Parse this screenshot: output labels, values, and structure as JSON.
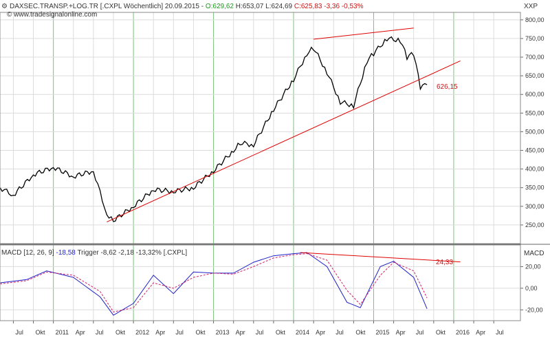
{
  "header": {
    "instrument": "DAXSEC.TRANSP.+LOG.TR [.CXPL  Wöchentlich] 20.09.2015 - ",
    "open": "O:629,62",
    "high": "H:653,07",
    "low": "L:624,69",
    "close": "C:625,83 -3,36 -0,53%",
    "watermark": "© www.tradesignalonline.com"
  },
  "price_panel": {
    "axis_label": "XXP",
    "annotation": "626,15"
  },
  "macd_panel": {
    "legend_prefix": "MACD [12, 26, 9] ",
    "legend_macd": "-18,58",
    "legend_trigger": " Trigger -8,62",
    "legend_hist": " -2,18 -13,32% [.CXPL]",
    "axis_label": "MACD",
    "annotation": "24,33"
  },
  "colors": {
    "price_line": "#000000",
    "trend_line": "#e00000",
    "macd_line": "#2020c8",
    "trigger_line": "#d0206a",
    "grid": "#dcdcdc",
    "vline": "#7bc27b"
  },
  "chart_data": [
    {
      "type": "line",
      "title": "DAXSEC.TRANSP.+LOG.TR",
      "ylabel": "XXP",
      "ylim": [
        200,
        820
      ],
      "yticks": [
        "250,00",
        "300,00",
        "350,00",
        "400,00",
        "450,00",
        "500,00",
        "550,00",
        "600,00",
        "650,00",
        "700,00",
        "750,00",
        "800,00"
      ],
      "xticks": [
        "Jul",
        "Okt",
        "2011",
        "Apr",
        "Jul",
        "Okt",
        "2012",
        "Apr",
        "Jul",
        "Okt",
        "2013",
        "Apr",
        "Jul",
        "Okt",
        "2014",
        "Apr",
        "Jul",
        "Okt",
        "2015",
        "Apr",
        "Jul",
        "Okt",
        "2016",
        "Apr",
        "Jul"
      ],
      "x": [
        "2010-05",
        "2010-07",
        "2010-10",
        "2011-01",
        "2011-04",
        "2011-07",
        "2011-09",
        "2011-10",
        "2012-01",
        "2012-04",
        "2012-07",
        "2012-10",
        "2013-01",
        "2013-04",
        "2013-05",
        "2013-07",
        "2013-10",
        "2014-01",
        "2014-03",
        "2014-04",
        "2014-06",
        "2014-08",
        "2014-10",
        "2014-12",
        "2015-01",
        "2015-03",
        "2015-05",
        "2015-06",
        "2015-07",
        "2015-08",
        "2015-09"
      ],
      "values": [
        350,
        330,
        385,
        405,
        380,
        395,
        280,
        262,
        300,
        345,
        340,
        350,
        395,
        450,
        470,
        465,
        560,
        640,
        710,
        725,
        660,
        580,
        570,
        690,
        710,
        750,
        745,
        700,
        710,
        620,
        626
      ],
      "trend_lines": [
        {
          "from": [
            "2011-09",
            258
          ],
          "to": [
            "2016-02",
            690
          ]
        },
        {
          "from": [
            "2014-04",
            748
          ],
          "to": [
            "2015-07",
            778
          ]
        }
      ]
    },
    {
      "type": "line",
      "title": "MACD [12, 26, 9]",
      "ylabel": "MACD",
      "ylim": [
        -30,
        40
      ],
      "yticks": [
        "20,00",
        "0,00",
        "-20,00"
      ],
      "series": [
        {
          "name": "MACD",
          "x": [
            "2010-05",
            "2010-09",
            "2010-12",
            "2011-04",
            "2011-08",
            "2011-10",
            "2012-01",
            "2012-04",
            "2012-07",
            "2012-10",
            "2013-01",
            "2013-04",
            "2013-07",
            "2013-10",
            "2014-01",
            "2014-03",
            "2014-06",
            "2014-09",
            "2014-11",
            "2015-02",
            "2015-04",
            "2015-07",
            "2015-09"
          ],
          "values": [
            5,
            8,
            16,
            10,
            -8,
            -25,
            -14,
            12,
            -5,
            15,
            14,
            14,
            24,
            30,
            32,
            33,
            20,
            -13,
            -18,
            20,
            25,
            10,
            -19
          ]
        },
        {
          "name": "Trigger",
          "x": [
            "2010-05",
            "2010-09",
            "2010-12",
            "2011-04",
            "2011-08",
            "2011-10",
            "2012-01",
            "2012-04",
            "2012-07",
            "2012-10",
            "2013-01",
            "2013-04",
            "2013-07",
            "2013-10",
            "2014-01",
            "2014-03",
            "2014-06",
            "2014-09",
            "2014-11",
            "2015-02",
            "2015-04",
            "2015-07",
            "2015-09"
          ],
          "values": [
            4,
            7,
            15,
            12,
            -3,
            -22,
            -18,
            5,
            0,
            10,
            14,
            13,
            20,
            28,
            31,
            32,
            26,
            -2,
            -15,
            12,
            24,
            16,
            -9
          ]
        }
      ],
      "trend_lines": [
        {
          "from": [
            "2014-02",
            33
          ],
          "to": [
            "2016-02",
            24.33
          ]
        }
      ]
    }
  ]
}
